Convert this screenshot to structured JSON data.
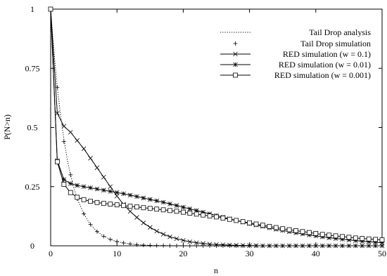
{
  "chart_data": {
    "type": "line",
    "xlabel": "n",
    "ylabel": "P(N>n)",
    "xlim": [
      0,
      50
    ],
    "ylim": [
      0,
      1
    ],
    "x_ticks": [
      0,
      10,
      20,
      30,
      40,
      50
    ],
    "y_ticks": [
      0,
      0.25,
      0.5,
      0.75,
      1
    ],
    "x_tick_labels": [
      "0",
      "10",
      "20",
      "30",
      "40",
      "50"
    ],
    "y_tick_labels": [
      "0",
      "0.25",
      "0.5",
      "0.75",
      "1"
    ],
    "grid": false,
    "legend_position": "top-right",
    "series": [
      {
        "name": "Tail Drop analysis",
        "style": "dotted",
        "marker": "none",
        "x": [
          0,
          0.5,
          1,
          1.5,
          2,
          2.5,
          3,
          3.5,
          4,
          5,
          6,
          7,
          8,
          9,
          10,
          11,
          12,
          13,
          14,
          15,
          16,
          18,
          20,
          25,
          30,
          35,
          40,
          45,
          50
        ],
        "y": [
          1,
          0.82,
          0.67,
          0.55,
          0.45,
          0.365,
          0.3,
          0.245,
          0.2,
          0.135,
          0.09,
          0.06,
          0.04,
          0.027,
          0.018,
          0.012,
          0.008,
          0.005,
          0.003,
          0.002,
          0.001,
          0.0005,
          0.0002,
          0,
          0,
          0,
          0,
          0,
          0
        ]
      },
      {
        "name": "Tail Drop simulation",
        "style": "none",
        "marker": "plus",
        "x": [
          0,
          1,
          2,
          3,
          4,
          5,
          6,
          7,
          8,
          9,
          10,
          11,
          12,
          13,
          14,
          15,
          16,
          17,
          18,
          19,
          20,
          21,
          22,
          23,
          24,
          25,
          26,
          27,
          28,
          29,
          30,
          31,
          32,
          33,
          34,
          35,
          36,
          37,
          38,
          39,
          40,
          41,
          42,
          43,
          44,
          45,
          46,
          47,
          48,
          49,
          50
        ],
        "y": [
          1,
          0.67,
          0.44,
          0.3,
          0.2,
          0.135,
          0.09,
          0.06,
          0.04,
          0.027,
          0.018,
          0.012,
          0.008,
          0.005,
          0.003,
          0.002,
          0.001,
          0.001,
          0.0005,
          0,
          0,
          0,
          0,
          0,
          0,
          0,
          0,
          0,
          0,
          0,
          0,
          0,
          0,
          0,
          0,
          0,
          0,
          0,
          0,
          0,
          0,
          0,
          0,
          0,
          0,
          0,
          0,
          0,
          0,
          0,
          0
        ]
      },
      {
        "name": "RED simulation (w = 0.1)",
        "style": "solid",
        "marker": "x",
        "x": [
          0,
          1,
          2,
          3,
          4,
          5,
          6,
          7,
          8,
          9,
          10,
          11,
          12,
          13,
          14,
          15,
          16,
          17,
          18,
          19,
          20,
          21,
          22,
          23,
          24,
          25,
          26,
          27,
          28,
          29,
          30,
          31,
          32,
          33,
          34,
          35,
          36,
          37,
          38,
          39,
          40,
          41,
          42,
          43,
          44,
          45,
          46,
          47,
          48,
          49,
          50
        ],
        "y": [
          1,
          0.56,
          0.505,
          0.48,
          0.445,
          0.41,
          0.37,
          0.33,
          0.29,
          0.25,
          0.21,
          0.175,
          0.145,
          0.12,
          0.097,
          0.078,
          0.062,
          0.049,
          0.038,
          0.03,
          0.023,
          0.017,
          0.013,
          0.01,
          0.007,
          0.005,
          0.004,
          0.003,
          0.002,
          0.0015,
          0.001,
          0.0005,
          0,
          0,
          0,
          0,
          0,
          0,
          0,
          0,
          0,
          0,
          0,
          0,
          0,
          0,
          0,
          0,
          0,
          0,
          0
        ]
      },
      {
        "name": "RED simulation (w = 0.01)",
        "style": "solid",
        "marker": "star",
        "x": [
          0,
          1,
          2,
          3,
          4,
          5,
          6,
          7,
          8,
          9,
          10,
          11,
          12,
          13,
          14,
          15,
          16,
          17,
          18,
          19,
          20,
          21,
          22,
          23,
          24,
          25,
          26,
          27,
          28,
          29,
          30,
          31,
          32,
          33,
          34,
          35,
          36,
          37,
          38,
          39,
          40,
          41,
          42,
          43,
          44,
          45,
          46,
          47,
          48,
          49,
          50
        ],
        "y": [
          1,
          0.36,
          0.28,
          0.263,
          0.255,
          0.25,
          0.245,
          0.24,
          0.235,
          0.23,
          0.225,
          0.22,
          0.214,
          0.208,
          0.202,
          0.196,
          0.19,
          0.184,
          0.177,
          0.17,
          0.163,
          0.156,
          0.149,
          0.142,
          0.135,
          0.128,
          0.121,
          0.114,
          0.107,
          0.1,
          0.094,
          0.088,
          0.082,
          0.076,
          0.07,
          0.065,
          0.06,
          0.055,
          0.05,
          0.046,
          0.042,
          0.038,
          0.034,
          0.031,
          0.028,
          0.025,
          0.022,
          0.019,
          0.017,
          0.015,
          0.013
        ]
      },
      {
        "name": "RED simulation (w = 0.001)",
        "style": "solid",
        "marker": "square",
        "x": [
          0,
          1,
          2,
          3,
          4,
          5,
          6,
          7,
          8,
          9,
          10,
          11,
          12,
          13,
          14,
          15,
          16,
          17,
          18,
          19,
          20,
          21,
          22,
          23,
          24,
          25,
          26,
          27,
          28,
          29,
          30,
          31,
          32,
          33,
          34,
          35,
          36,
          37,
          38,
          39,
          40,
          41,
          42,
          43,
          44,
          45,
          46,
          47,
          48,
          49,
          50
        ],
        "y": [
          1,
          0.355,
          0.26,
          0.225,
          0.205,
          0.195,
          0.188,
          0.183,
          0.179,
          0.176,
          0.173,
          0.17,
          0.167,
          0.164,
          0.161,
          0.158,
          0.155,
          0.152,
          0.149,
          0.146,
          0.142,
          0.138,
          0.134,
          0.13,
          0.126,
          0.122,
          0.117,
          0.112,
          0.107,
          0.102,
          0.097,
          0.092,
          0.087,
          0.082,
          0.077,
          0.072,
          0.068,
          0.064,
          0.06,
          0.056,
          0.052,
          0.048,
          0.045,
          0.042,
          0.039,
          0.036,
          0.033,
          0.031,
          0.029,
          0.027,
          0.025
        ]
      }
    ]
  }
}
